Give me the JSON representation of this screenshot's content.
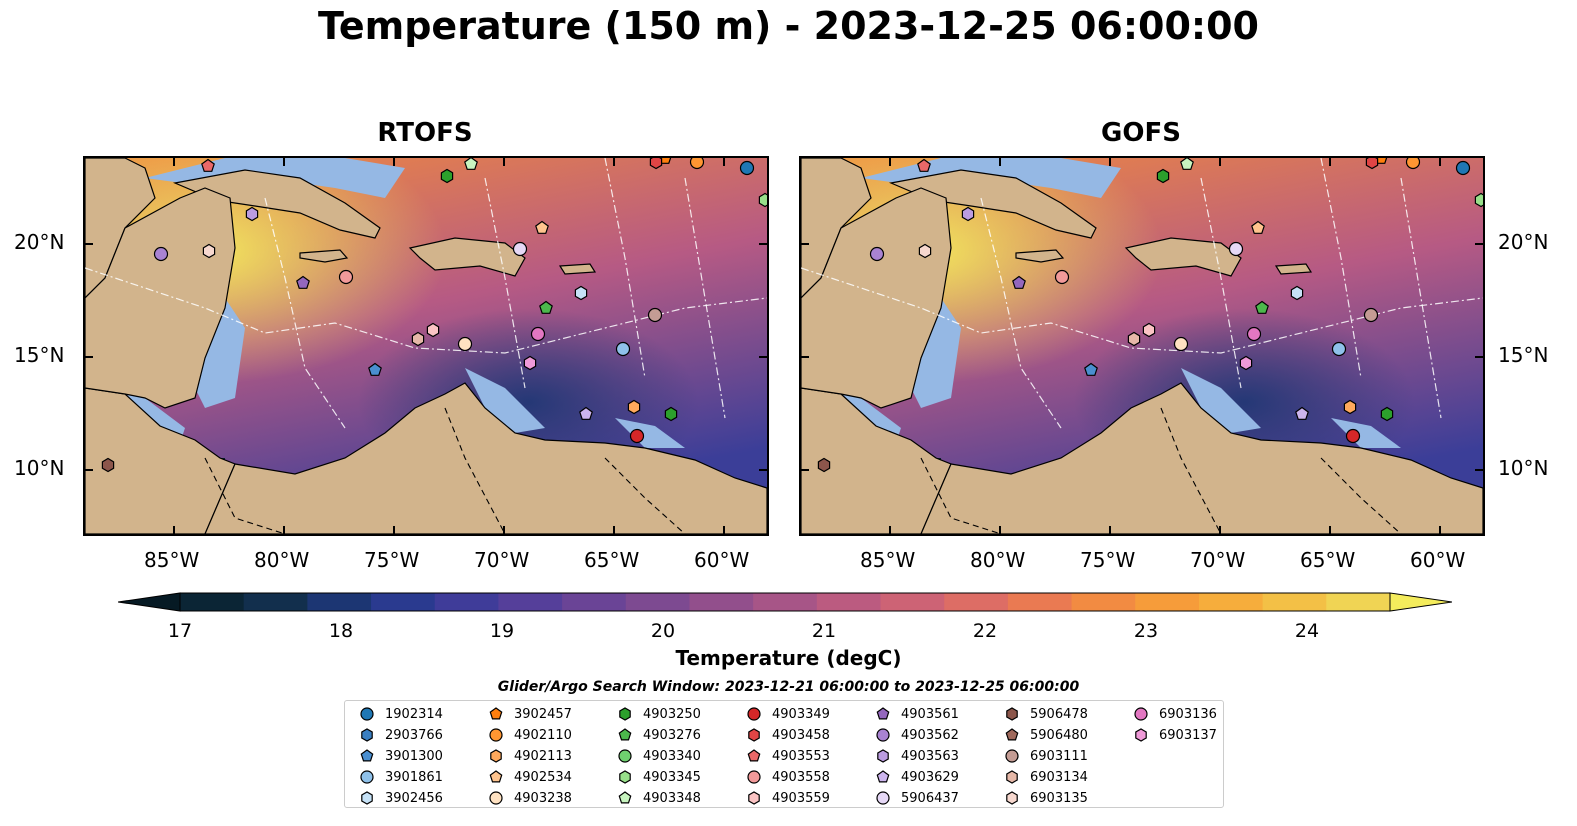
{
  "title": "Temperature (150 m) - 2023-12-25 06:00:00",
  "panels": [
    {
      "title": "RTOFS"
    },
    {
      "title": "GOFS"
    }
  ],
  "lon_ticks": [
    "85°W",
    "80°W",
    "75°W",
    "70°W",
    "65°W",
    "60°W"
  ],
  "lat_ticks": [
    "20°N",
    "15°N",
    "10°N"
  ],
  "colorbar": {
    "label": "Temperature (degC)",
    "ticks": [
      "17",
      "18",
      "19",
      "20",
      "21",
      "22",
      "23",
      "24"
    ],
    "colors": [
      "#0b2535",
      "#122f4d",
      "#1c3673",
      "#2a3a8f",
      "#3f3c99",
      "#553f9a",
      "#6a4496",
      "#7d4a91",
      "#924f8c",
      "#a75587",
      "#bb5b80",
      "#cd6375",
      "#dd6d65",
      "#ea7a52",
      "#f28b42",
      "#f69c3a",
      "#f6ad3c",
      "#f3c046",
      "#f0d454"
    ],
    "under_color": "#061a24",
    "over_color": "#f4ec5c"
  },
  "search_window": "Glider/Argo Search Window: 2023-12-21 06:00:00 to 2023-12-25 06:00:00",
  "legend": [
    {
      "label": "1902314",
      "marker": "circle",
      "color": "#1f77b4"
    },
    {
      "label": "2903766",
      "marker": "hexagon",
      "color": "#3a7fc1"
    },
    {
      "label": "3901300",
      "marker": "pentagon",
      "color": "#4a8fd0"
    },
    {
      "label": "3901861",
      "marker": "circle",
      "color": "#8fc1ea"
    },
    {
      "label": "3902456",
      "marker": "hexagon",
      "color": "#c6e2f7"
    },
    {
      "label": "3902457",
      "marker": "pentagon",
      "color": "#ff7f0e"
    },
    {
      "label": "4902110",
      "marker": "circle",
      "color": "#ff9632"
    },
    {
      "label": "4902113",
      "marker": "hexagon",
      "color": "#ffa95c"
    },
    {
      "label": "4902534",
      "marker": "pentagon",
      "color": "#ffc48e"
    },
    {
      "label": "4903238",
      "marker": "circle",
      "color": "#ffe2c2"
    },
    {
      "label": "4903250",
      "marker": "hexagon",
      "color": "#2ca02c"
    },
    {
      "label": "4903276",
      "marker": "pentagon",
      "color": "#4cb84c"
    },
    {
      "label": "4903340",
      "marker": "circle",
      "color": "#6fd06f"
    },
    {
      "label": "4903345",
      "marker": "hexagon",
      "color": "#98df8a"
    },
    {
      "label": "4903348",
      "marker": "pentagon",
      "color": "#c8f5c0"
    },
    {
      "label": "4903349",
      "marker": "circle",
      "color": "#d62728"
    },
    {
      "label": "4903458",
      "marker": "hexagon",
      "color": "#e04545"
    },
    {
      "label": "4903553",
      "marker": "pentagon",
      "color": "#ea6868"
    },
    {
      "label": "4903558",
      "marker": "circle",
      "color": "#f29a9a"
    },
    {
      "label": "4903559",
      "marker": "hexagon",
      "color": "#fbc4c4"
    },
    {
      "label": "4903561",
      "marker": "pentagon",
      "color": "#9467bd"
    },
    {
      "label": "4903562",
      "marker": "circle",
      "color": "#a983d2"
    },
    {
      "label": "4903563",
      "marker": "hexagon",
      "color": "#bb9ce0"
    },
    {
      "label": "4903629",
      "marker": "pentagon",
      "color": "#cdb5ee"
    },
    {
      "label": "5906437",
      "marker": "circle",
      "color": "#e6d8f6"
    },
    {
      "label": "5906478",
      "marker": "hexagon",
      "color": "#8c564b"
    },
    {
      "label": "5906480",
      "marker": "pentagon",
      "color": "#a0695c"
    },
    {
      "label": "6903111",
      "marker": "circle",
      "color": "#c49c94"
    },
    {
      "label": "6903134",
      "marker": "hexagon",
      "color": "#e6b8a8"
    },
    {
      "label": "6903135",
      "marker": "hexagon",
      "color": "#f7d8cf"
    },
    {
      "label": "6903136",
      "marker": "circle",
      "color": "#e377c2"
    },
    {
      "label": "6903137",
      "marker": "hexagon",
      "color": "#ef9ad8"
    }
  ],
  "map_style": {
    "land_color": "#d2b48c",
    "shelf_color": "#95b8e4",
    "pacific_color": "#07202e",
    "background_gradient": [
      "#f08a3e",
      "#b65a84",
      "#3b3e98"
    ]
  }
}
